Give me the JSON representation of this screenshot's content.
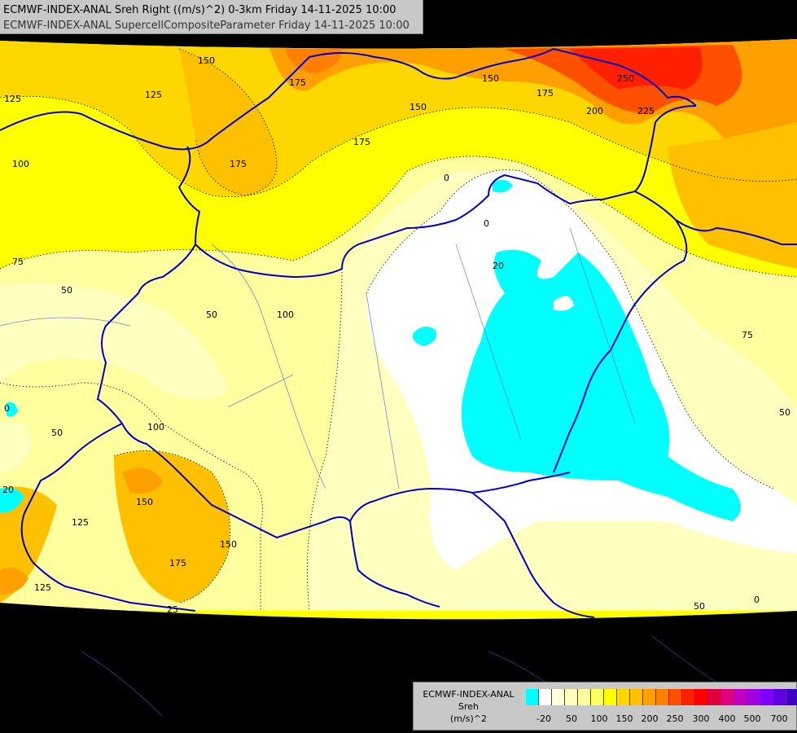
{
  "header": {
    "line1": "ECMWF-INDEX-ANAL Sreh Right ((m/s)^2) 0-3km Friday 14-11-2025 10:00",
    "line2": "ECMWF-INDEX-ANAL SupercellCompositeParameter Friday 14-11-2025 10:00"
  },
  "legend": {
    "title1": "ECMWF-INDEX-ANAL",
    "title2": "Sreh",
    "title3": "(m/s)^2",
    "colors": [
      "#00ffff",
      "#ffffff",
      "#ffffe0",
      "#ffffc0",
      "#ffffa0",
      "#ffff60",
      "#ffff00",
      "#ffd700",
      "#ffc000",
      "#ffa000",
      "#ff8000",
      "#ff5000",
      "#ff2000",
      "#ff0000",
      "#e00040",
      "#e00080",
      "#c000c0",
      "#a000e0",
      "#8000ff",
      "#6000e0",
      "#4000c0",
      "#2000a0",
      "#000080"
    ],
    "ticks": [
      "-20",
      "50",
      "100",
      "150",
      "200",
      "250",
      "300",
      "400",
      "500",
      "700"
    ]
  },
  "contour_labels": [
    "150",
    "175",
    "125",
    "125",
    "175",
    "150",
    "250",
    "225",
    "150",
    "175",
    "200",
    "100",
    "175",
    "0",
    "0",
    "20",
    "75",
    "50",
    "50",
    "100",
    "75",
    "50",
    "0",
    "100",
    "50",
    "20",
    "150",
    "125",
    "175",
    "150",
    "125",
    "25",
    "50",
    "0"
  ]
}
